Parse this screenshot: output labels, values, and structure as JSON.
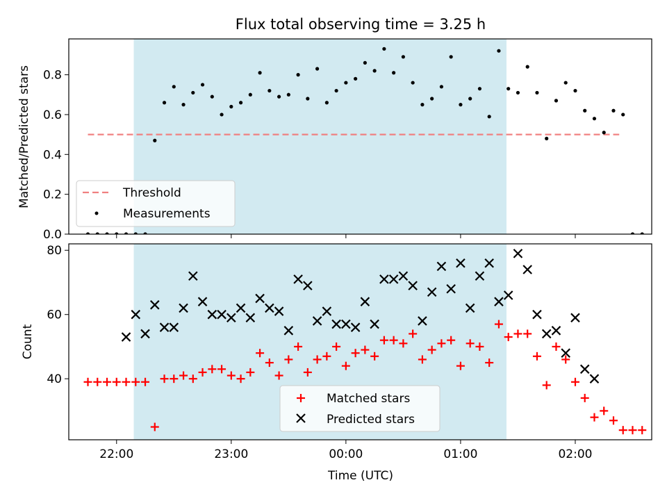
{
  "chart_data": [
    {
      "type": "scatter",
      "title": "Flux total observing time = 3.25 h",
      "xlabel": "",
      "ylabel": "Matched/Predicted stars",
      "x_time_range": [
        "21:35",
        "02:40"
      ],
      "ylim": [
        0,
        0.98
      ],
      "yticks": [
        "0.0",
        "0.2",
        "0.4",
        "0.6",
        "0.8"
      ],
      "shaded_interval": [
        "22:09",
        "01:24"
      ],
      "shade_color": "#add8e6",
      "threshold": {
        "name": "Threshold",
        "value": 0.5,
        "x_range": [
          "21:45",
          "02:23"
        ],
        "color": "#f08080",
        "style": "dashed"
      },
      "series": [
        {
          "name": "Measurements",
          "color": "#000000",
          "marker": "dot",
          "x": [
            "21:45",
            "21:50",
            "21:55",
            "22:00",
            "22:05",
            "22:10",
            "22:15",
            "22:20",
            "22:25",
            "22:30",
            "22:35",
            "22:40",
            "22:45",
            "22:50",
            "22:55",
            "23:00",
            "23:05",
            "23:10",
            "23:15",
            "23:20",
            "23:25",
            "23:30",
            "23:35",
            "23:40",
            "23:45",
            "23:50",
            "23:55",
            "00:00",
            "00:05",
            "00:10",
            "00:15",
            "00:20",
            "00:25",
            "00:30",
            "00:35",
            "00:40",
            "00:45",
            "00:50",
            "00:55",
            "01:00",
            "01:05",
            "01:10",
            "01:15",
            "01:20",
            "01:25",
            "01:30",
            "01:35",
            "01:40",
            "01:45",
            "01:50",
            "01:55",
            "02:00",
            "02:05",
            "02:10",
            "02:15",
            "02:20",
            "02:25",
            "02:30",
            "02:35"
          ],
          "values": [
            0.0,
            0.0,
            0.0,
            0.0,
            0.0,
            0.0,
            0.0,
            0.47,
            0.66,
            0.74,
            0.65,
            0.71,
            0.75,
            0.69,
            0.6,
            0.64,
            0.66,
            0.7,
            0.81,
            0.72,
            0.69,
            0.7,
            0.8,
            0.68,
            0.83,
            0.66,
            0.72,
            0.76,
            0.78,
            0.86,
            0.82,
            0.93,
            0.81,
            0.89,
            0.76,
            0.65,
            0.68,
            0.74,
            0.89,
            0.65,
            0.68,
            0.73,
            0.59,
            0.92,
            0.73,
            0.71,
            0.84,
            0.71,
            0.48,
            0.67,
            0.76,
            0.72,
            0.62,
            0.58,
            0.51,
            0.62,
            0.6,
            0.0,
            0.0
          ]
        }
      ],
      "legend": {
        "placement": "lower-left",
        "entries": [
          "Threshold",
          "Measurements"
        ]
      }
    },
    {
      "type": "scatter",
      "title": "",
      "xlabel": "Time (UTC)",
      "ylabel": "Count",
      "x_time_range": [
        "21:35",
        "02:40"
      ],
      "xticks": [
        "22:00",
        "23:00",
        "00:00",
        "01:00",
        "02:00"
      ],
      "ylim": [
        21,
        82
      ],
      "yticks": [
        "40",
        "60",
        "80"
      ],
      "shaded_interval": [
        "22:09",
        "01:24"
      ],
      "series": [
        {
          "name": "Matched stars",
          "color": "#ff0000",
          "marker": "plus",
          "x": [
            "21:45",
            "21:50",
            "21:55",
            "22:00",
            "22:05",
            "22:10",
            "22:15",
            "22:20",
            "22:25",
            "22:30",
            "22:35",
            "22:40",
            "22:45",
            "22:50",
            "22:55",
            "23:00",
            "23:05",
            "23:10",
            "23:15",
            "23:20",
            "23:25",
            "23:30",
            "23:35",
            "23:40",
            "23:45",
            "23:50",
            "23:55",
            "00:00",
            "00:05",
            "00:10",
            "00:15",
            "00:20",
            "00:25",
            "00:30",
            "00:35",
            "00:40",
            "00:45",
            "00:50",
            "00:55",
            "01:00",
            "01:05",
            "01:10",
            "01:15",
            "01:20",
            "01:25",
            "01:30",
            "01:35",
            "01:40",
            "01:45",
            "01:50",
            "01:55",
            "02:00",
            "02:05",
            "02:10",
            "02:15",
            "02:20",
            "02:25",
            "02:30",
            "02:35"
          ],
          "values": [
            39,
            39,
            39,
            39,
            39,
            39,
            39,
            25,
            40,
            40,
            41,
            40,
            42,
            43,
            43,
            41,
            40,
            42,
            48,
            45,
            41,
            46,
            50,
            42,
            46,
            47,
            50,
            44,
            48,
            49,
            47,
            52,
            52,
            51,
            54,
            46,
            49,
            51,
            52,
            44,
            51,
            50,
            45,
            57,
            53,
            54,
            54,
            47,
            38,
            50,
            46,
            39,
            34,
            28,
            30,
            27,
            24,
            24,
            24
          ]
        },
        {
          "name": "Predicted stars",
          "color": "#000000",
          "marker": "cross",
          "x": [
            "22:05",
            "22:10",
            "22:15",
            "22:20",
            "22:25",
            "22:30",
            "22:35",
            "22:40",
            "22:45",
            "22:50",
            "22:55",
            "23:00",
            "23:05",
            "23:10",
            "23:15",
            "23:20",
            "23:25",
            "23:30",
            "23:35",
            "23:40",
            "23:45",
            "23:50",
            "23:55",
            "00:00",
            "00:05",
            "00:10",
            "00:15",
            "00:20",
            "00:25",
            "00:30",
            "00:35",
            "00:40",
            "00:45",
            "00:50",
            "00:55",
            "01:00",
            "01:05",
            "01:10",
            "01:15",
            "01:20",
            "01:25",
            "01:30",
            "01:35",
            "01:40",
            "01:45",
            "01:50",
            "01:55",
            "02:00",
            "02:05",
            "02:10"
          ],
          "values": [
            53,
            60,
            54,
            63,
            56,
            56,
            62,
            72,
            64,
            60,
            60,
            59,
            62,
            59,
            65,
            62,
            61,
            55,
            71,
            69,
            58,
            61,
            57,
            57,
            56,
            64,
            57,
            71,
            71,
            72,
            69,
            58,
            67,
            75,
            68,
            76,
            62,
            72,
            76,
            64,
            66,
            79,
            74,
            60,
            54,
            55,
            48,
            59,
            43,
            40
          ]
        }
      ],
      "legend": {
        "placement": "lower-center",
        "entries": [
          "Matched stars",
          "Predicted stars"
        ]
      }
    }
  ]
}
